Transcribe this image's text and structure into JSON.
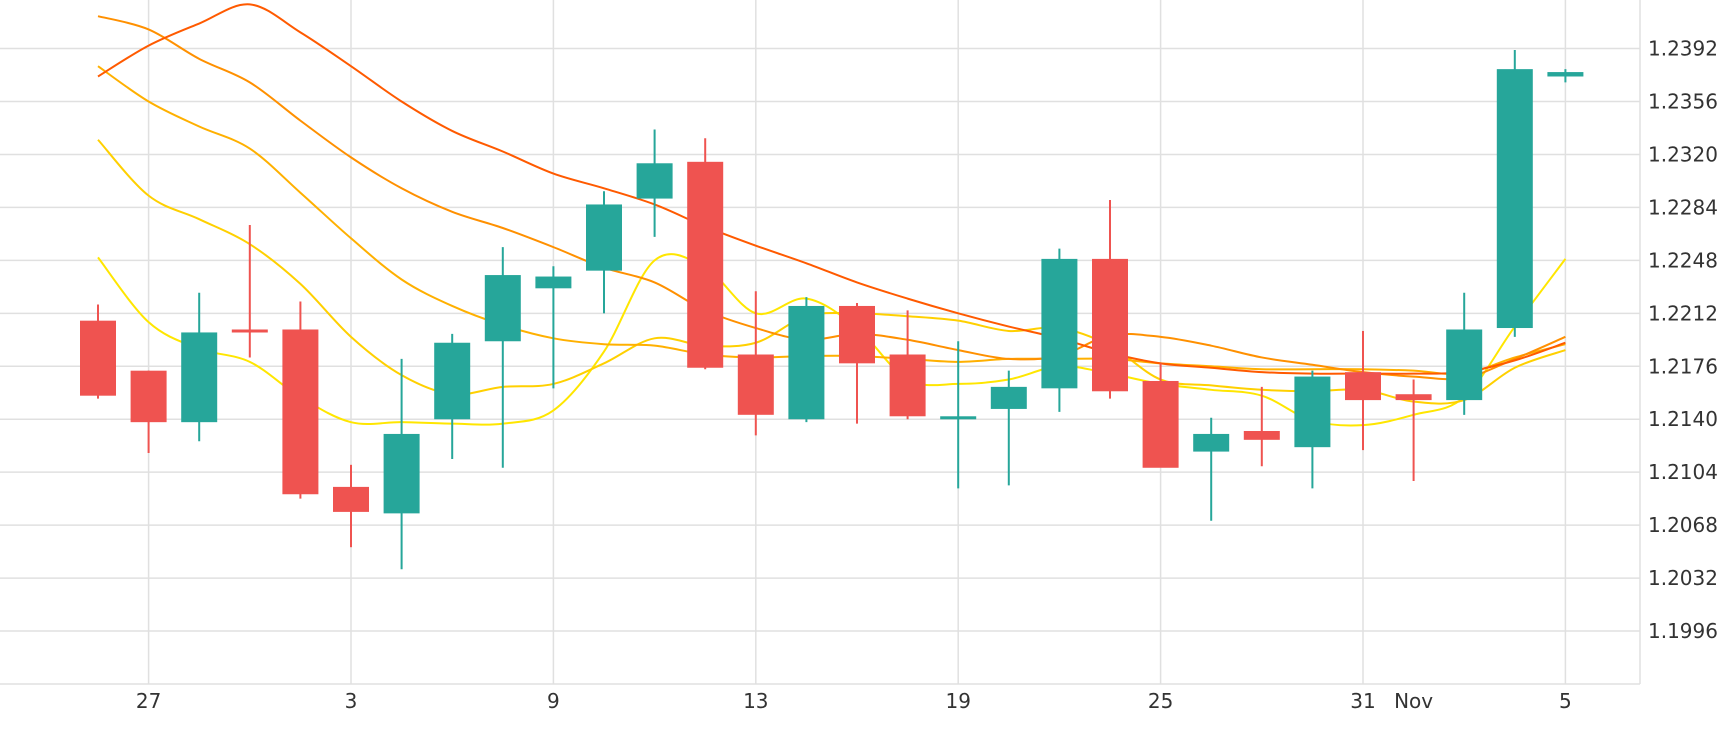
{
  "chart_data": {
    "type": "candlestick",
    "title": "",
    "xlabel": "",
    "ylabel": "",
    "ylim": [
      1.196,
      1.2425
    ],
    "grid": true,
    "y_axis_position": "right",
    "y_ticks": [
      "1.1996",
      "1.2032",
      "1.2068",
      "1.2104",
      "1.2140",
      "1.2176",
      "1.2212",
      "1.2248",
      "1.2284",
      "1.2320",
      "1.2356",
      "1.2392"
    ],
    "x_ticks": [
      {
        "label": "27",
        "candle_index": 1
      },
      {
        "label": "3",
        "candle_index": 5
      },
      {
        "label": "9",
        "candle_index": 9
      },
      {
        "label": "13",
        "candle_index": 13
      },
      {
        "label": "19",
        "candle_index": 17
      },
      {
        "label": "25",
        "candle_index": 21
      },
      {
        "label": "31",
        "candle_index": 25
      },
      {
        "label": "Nov",
        "candle_index": 26
      },
      {
        "label": "5",
        "candle_index": 29
      }
    ],
    "candles": [
      {
        "open": 1.2207,
        "high": 1.2218,
        "low": 1.2154,
        "close": 1.2156
      },
      {
        "open": 1.2173,
        "high": 1.2173,
        "low": 1.2117,
        "close": 1.2138
      },
      {
        "open": 1.2138,
        "high": 1.2226,
        "low": 1.2125,
        "close": 1.2199
      },
      {
        "open": 1.2201,
        "high": 1.2272,
        "low": 1.2182,
        "close": 1.2199
      },
      {
        "open": 1.2201,
        "high": 1.222,
        "low": 1.2086,
        "close": 1.2089
      },
      {
        "open": 1.2094,
        "high": 1.2109,
        "low": 1.2053,
        "close": 1.2077
      },
      {
        "open": 1.2076,
        "high": 1.2181,
        "low": 1.2038,
        "close": 1.213
      },
      {
        "open": 1.214,
        "high": 1.2198,
        "low": 1.2113,
        "close": 1.2192
      },
      {
        "open": 1.2193,
        "high": 1.2257,
        "low": 1.2107,
        "close": 1.2238
      },
      {
        "open": 1.2229,
        "high": 1.2244,
        "low": 1.2161,
        "close": 1.2237
      },
      {
        "open": 1.2241,
        "high": 1.2295,
        "low": 1.2212,
        "close": 1.2286
      },
      {
        "open": 1.229,
        "high": 1.2337,
        "low": 1.2264,
        "close": 1.2314
      },
      {
        "open": 1.2315,
        "high": 1.2331,
        "low": 1.2174,
        "close": 1.2175
      },
      {
        "open": 1.2184,
        "high": 1.2227,
        "low": 1.2129,
        "close": 1.2143
      },
      {
        "open": 1.214,
        "high": 1.2223,
        "low": 1.2138,
        "close": 1.2217
      },
      {
        "open": 1.2217,
        "high": 1.2219,
        "low": 1.2137,
        "close": 1.2178
      },
      {
        "open": 1.2184,
        "high": 1.2214,
        "low": 1.214,
        "close": 1.2142
      },
      {
        "open": 1.2142,
        "high": 1.2193,
        "low": 1.2093,
        "close": 1.2142
      },
      {
        "open": 1.2147,
        "high": 1.2173,
        "low": 1.2095,
        "close": 1.2162
      },
      {
        "open": 1.2161,
        "high": 1.2256,
        "low": 1.2145,
        "close": 1.2249
      },
      {
        "open": 1.2249,
        "high": 1.2289,
        "low": 1.2154,
        "close": 1.2159
      },
      {
        "open": 1.2166,
        "high": 1.2178,
        "low": 1.2109,
        "close": 1.2107
      },
      {
        "open": 1.2118,
        "high": 1.2141,
        "low": 1.2071,
        "close": 1.213
      },
      {
        "open": 1.2132,
        "high": 1.2162,
        "low": 1.2108,
        "close": 1.2126
      },
      {
        "open": 1.2121,
        "high": 1.2173,
        "low": 1.2093,
        "close": 1.2169
      },
      {
        "open": 1.2172,
        "high": 1.22,
        "low": 1.2119,
        "close": 1.2153
      },
      {
        "open": 1.2157,
        "high": 1.2167,
        "low": 1.2098,
        "close": 1.2153
      },
      {
        "open": 1.2153,
        "high": 1.2226,
        "low": 1.2143,
        "close": 1.2201
      },
      {
        "open": 1.2202,
        "high": 1.2391,
        "low": 1.2196,
        "close": 1.2378
      },
      {
        "open": 1.2373,
        "high": 1.2378,
        "low": 1.2369,
        "close": 1.2376
      }
    ],
    "overlay_lines": [
      {
        "color": "#ffe600",
        "values": [
          1.225,
          1.2206,
          1.2188,
          1.2179,
          1.2155,
          1.2138,
          1.2138,
          1.2137,
          1.2137,
          1.2146,
          1.2186,
          1.2248,
          1.2243,
          1.2212,
          1.2222,
          1.2202,
          1.2167,
          1.2164,
          1.2167,
          1.2176,
          1.2171,
          1.2164,
          1.216,
          1.2156,
          1.2139,
          1.2136,
          1.2143,
          1.2155,
          1.2203,
          1.2249
        ]
      },
      {
        "color": "#ffd000",
        "values": [
          1.233,
          1.2292,
          1.2276,
          1.2259,
          1.2232,
          1.2196,
          1.217,
          1.2157,
          1.2162,
          1.2164,
          1.2178,
          1.2195,
          1.219,
          1.2192,
          1.221,
          1.2212,
          1.221,
          1.2207,
          1.22,
          1.2202,
          1.219,
          1.2167,
          1.2163,
          1.216,
          1.2159,
          1.216,
          1.2152,
          1.2153,
          1.2175,
          1.2187
        ]
      },
      {
        "color": "#ffb000",
        "values": [
          1.238,
          1.2356,
          1.2339,
          1.2324,
          1.2294,
          1.2263,
          1.2235,
          1.2217,
          1.2204,
          1.2195,
          1.2191,
          1.219,
          1.2184,
          1.2182,
          1.2183,
          1.2183,
          1.2181,
          1.2179,
          1.2181,
          1.2181,
          1.2181,
          1.2178,
          1.2176,
          1.2174,
          1.2174,
          1.2174,
          1.2173,
          1.2171,
          1.2182,
          1.2191
        ]
      },
      {
        "color": "#ff9000",
        "values": [
          1.2414,
          1.2405,
          1.2385,
          1.2369,
          1.2343,
          1.2318,
          1.2297,
          1.2281,
          1.227,
          1.2257,
          1.2243,
          1.2233,
          1.2214,
          1.2202,
          1.2194,
          1.2198,
          1.2194,
          1.2187,
          1.2181,
          1.2183,
          1.2197,
          1.2196,
          1.219,
          1.2182,
          1.2177,
          1.2172,
          1.2169,
          1.2168,
          1.2181,
          1.2196
        ]
      },
      {
        "color": "#ff5a00",
        "values": [
          1.2373,
          1.2394,
          1.2409,
          1.2422,
          1.2403,
          1.238,
          1.2356,
          1.2336,
          1.2322,
          1.2307,
          1.2297,
          1.2286,
          1.2271,
          1.2258,
          1.2246,
          1.2233,
          1.2222,
          1.2212,
          1.2203,
          1.2195,
          1.2185,
          1.2178,
          1.2175,
          1.2172,
          1.2171,
          1.2171,
          1.2171,
          1.2172,
          1.218,
          1.2192
        ]
      }
    ],
    "colors": {
      "up": "#26a69a",
      "down": "#ef5350",
      "grid": "#e0e0e0",
      "background": "#ffffff"
    }
  }
}
